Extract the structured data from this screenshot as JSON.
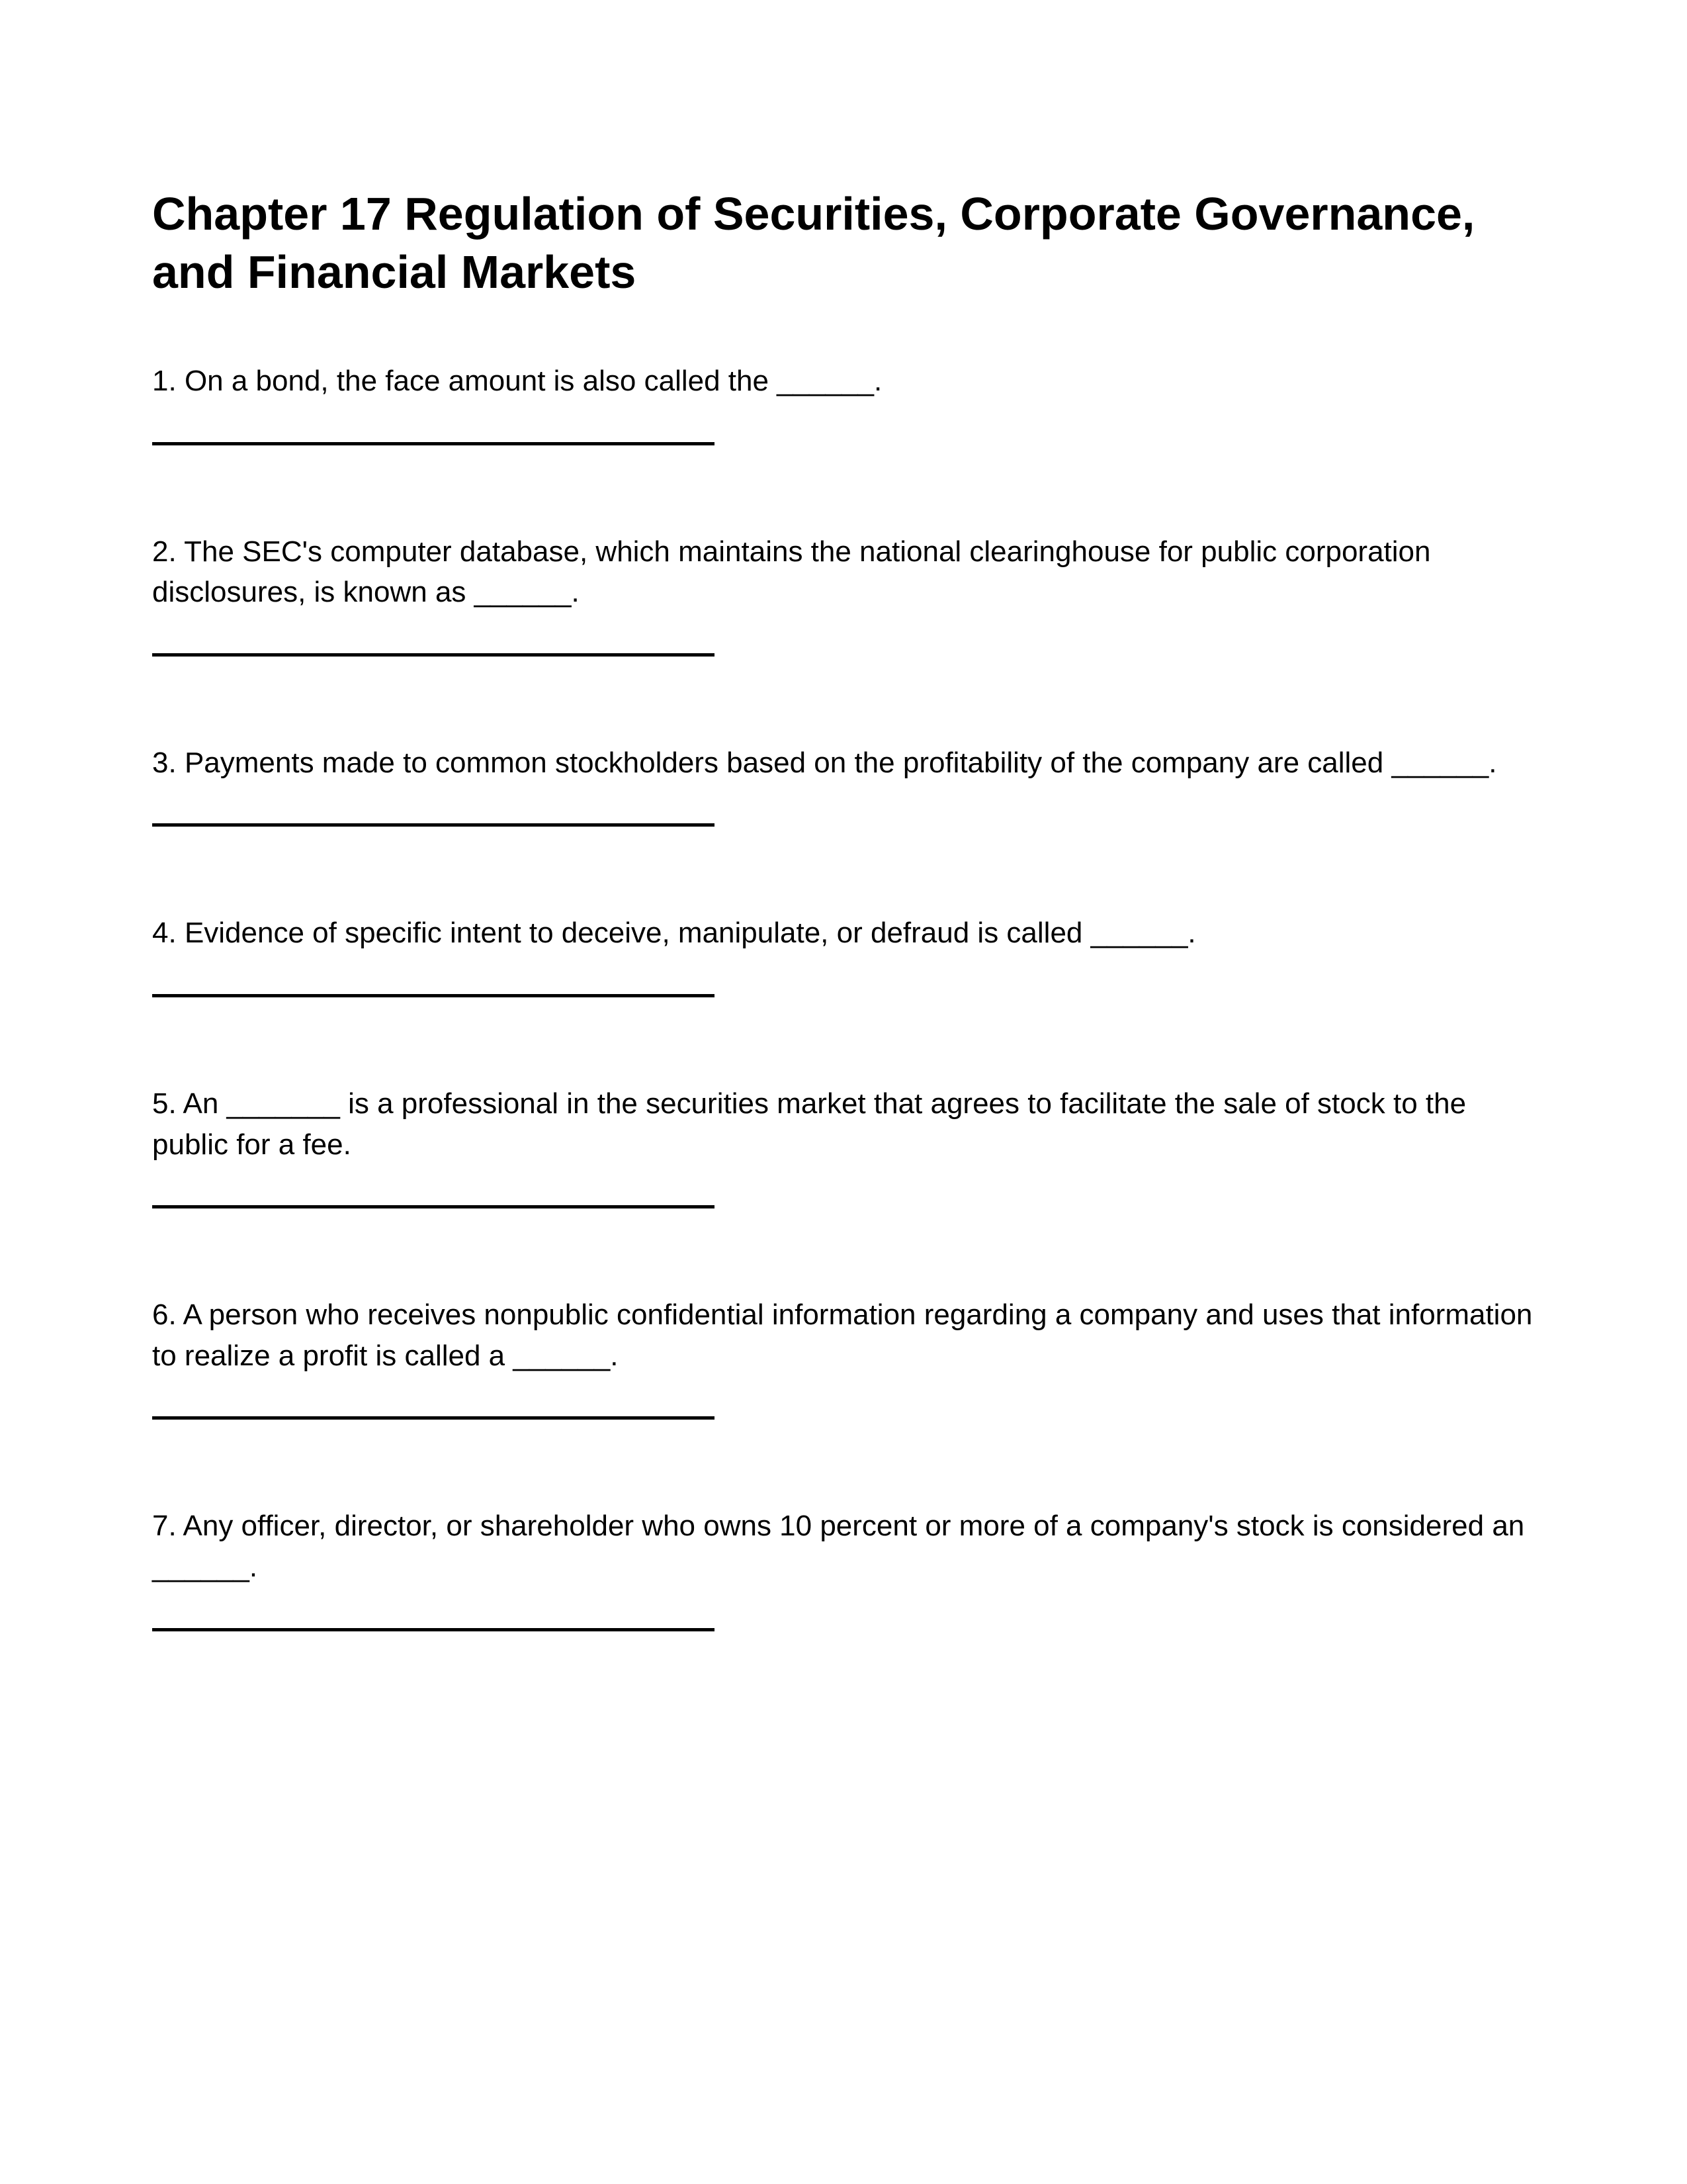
{
  "title": "Chapter 17 Regulation of Securities, Corporate Governance, and Financial Markets",
  "questions": [
    {
      "number": "1",
      "text": "On a bond, the face amount is also called the ______."
    },
    {
      "number": "2",
      "text": "The SEC's computer database, which maintains the national clearinghouse for public corporation disclosures, is known as ______."
    },
    {
      "number": "3",
      "text": "Payments made to common stockholders based on the profitability of the company are called ______."
    },
    {
      "number": "4",
      "text": "Evidence of specific intent to deceive, manipulate, or defraud is called ______."
    },
    {
      "number": "5",
      "text": "An _______ is a professional in the securities market that agrees to facilitate the sale of stock to the public for a fee."
    },
    {
      "number": "6",
      "text": " A person who receives nonpublic confidential information regarding a company and uses that information to realize a profit is called a ______."
    },
    {
      "number": "7",
      "text": " Any officer, director, or shareholder who owns 10 percent or more of a company's stock is considered an ______."
    }
  ]
}
